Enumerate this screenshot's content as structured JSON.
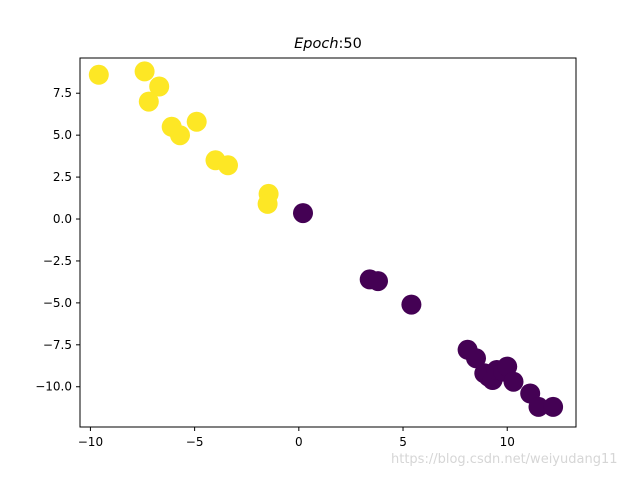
{
  "chart_data": {
    "type": "scatter",
    "title": "Epoch: 50",
    "title_prefix": "Epoch",
    "title_suffix": ":50",
    "xlabel": "",
    "ylabel": "",
    "xlim": [
      -10.5,
      13.3
    ],
    "ylim": [
      -12.4,
      9.6
    ],
    "xticks": [
      -10,
      -5,
      0,
      5,
      10
    ],
    "xtick_labels": [
      "−10",
      "−5",
      "0",
      "5",
      "10"
    ],
    "yticks": [
      -10,
      -7.5,
      -5,
      -2.5,
      0,
      2.5,
      5,
      7.5
    ],
    "ytick_labels": [
      "−10.0",
      "−7.5",
      "−5.0",
      "−2.5",
      "0.0",
      "2.5",
      "5.0",
      "7.5"
    ],
    "grid": false,
    "series": [
      {
        "color": "#fde725",
        "points": [
          {
            "x": -9.6,
            "y": 8.6
          },
          {
            "x": -7.4,
            "y": 8.8
          },
          {
            "x": -6.7,
            "y": 7.9
          },
          {
            "x": -7.2,
            "y": 7.0
          },
          {
            "x": -6.1,
            "y": 5.5
          },
          {
            "x": -5.7,
            "y": 5.0
          },
          {
            "x": -4.9,
            "y": 5.8
          },
          {
            "x": -4.0,
            "y": 3.5
          },
          {
            "x": -3.4,
            "y": 3.2
          },
          {
            "x": -1.45,
            "y": 1.5
          },
          {
            "x": -1.5,
            "y": 0.9
          }
        ]
      },
      {
        "color": "#440154",
        "points": [
          {
            "x": 0.2,
            "y": 0.35
          },
          {
            "x": 3.4,
            "y": -3.6
          },
          {
            "x": 3.8,
            "y": -3.7
          },
          {
            "x": 5.4,
            "y": -5.1
          },
          {
            "x": 8.1,
            "y": -7.8
          },
          {
            "x": 8.5,
            "y": -8.3
          },
          {
            "x": 8.9,
            "y": -9.2
          },
          {
            "x": 9.1,
            "y": -9.4
          },
          {
            "x": 9.3,
            "y": -9.6
          },
          {
            "x": 9.5,
            "y": -9.0
          },
          {
            "x": 9.8,
            "y": -9.1
          },
          {
            "x": 10.0,
            "y": -8.8
          },
          {
            "x": 10.3,
            "y": -9.7
          },
          {
            "x": 11.1,
            "y": -10.4
          },
          {
            "x": 11.5,
            "y": -11.2
          },
          {
            "x": 12.2,
            "y": -11.2
          }
        ]
      }
    ]
  },
  "watermark": "https://blog.csdn.net/weiyudang11"
}
